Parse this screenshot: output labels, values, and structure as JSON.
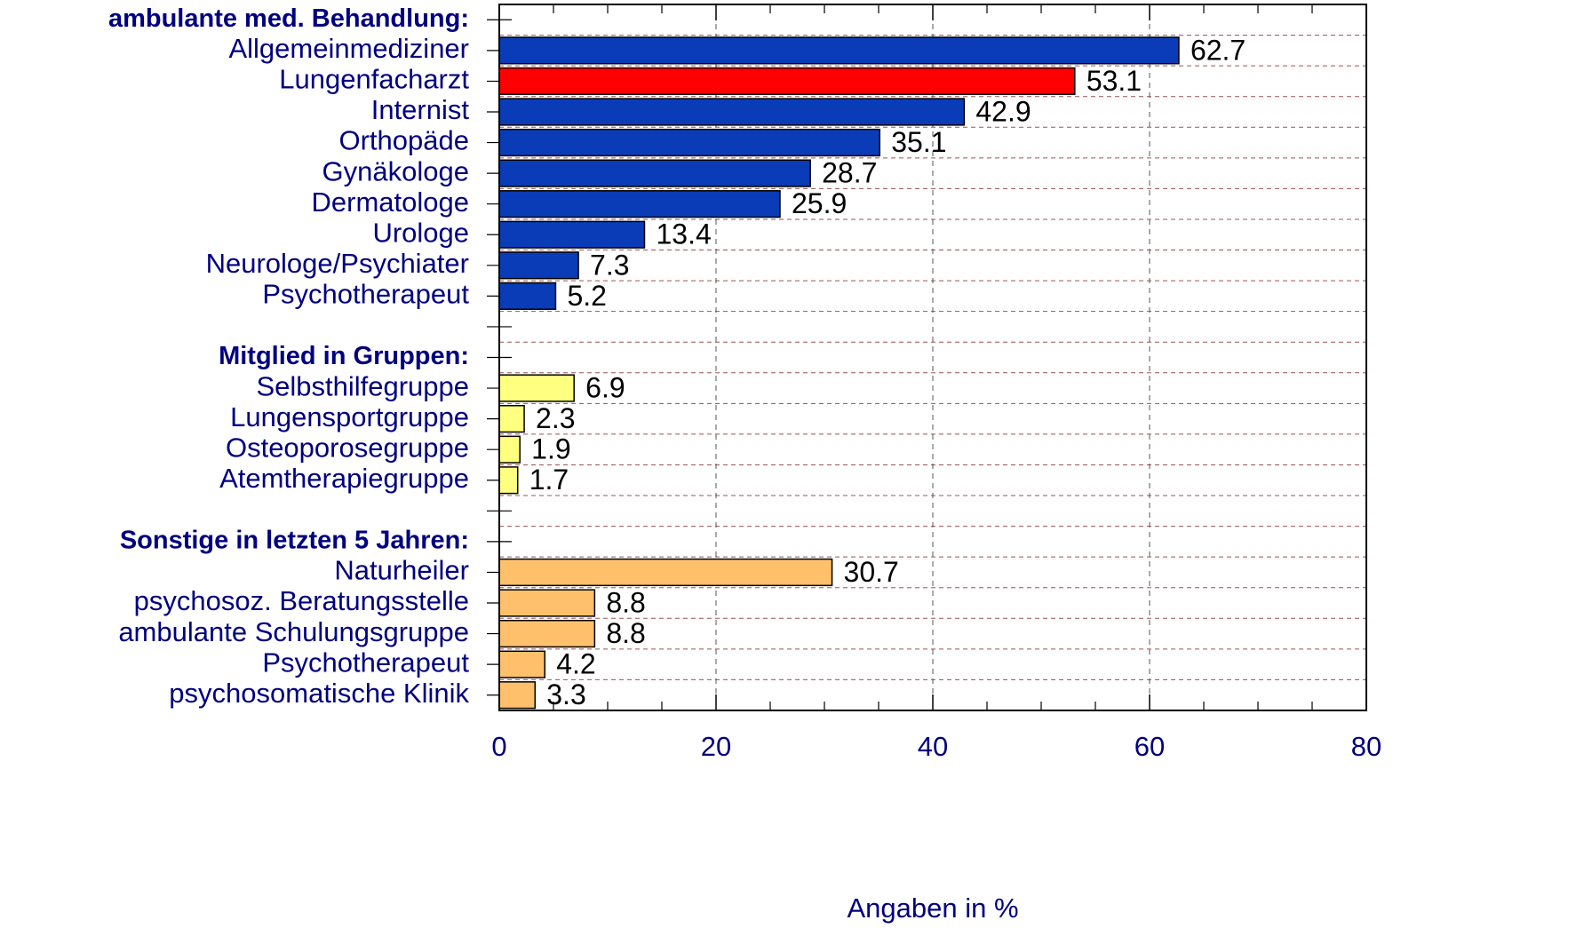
{
  "chart_data": {
    "type": "bar",
    "orientation": "horizontal",
    "categories": [
      "ambulante med. Behandlung:",
      "Allgemeinmediziner",
      "Lungenfacharzt",
      "Internist",
      "Orthopäde",
      "Gynäkologe",
      "Dermatologe",
      "Urologe",
      "Neurologe/Psychiater",
      "Psychotherapeut",
      null,
      "Mitglied in Gruppen:",
      "Selbsthilfegruppe",
      "Lungensportgruppe",
      "Osteoporosegruppe",
      "Atemtherapiegruppe",
      null,
      "Sonstige in letzten 5 Jahren:",
      "Naturheiler",
      "psychosoz. Beratungsstelle",
      "ambulante Schulungsgruppe",
      "Psychotherapeut",
      "psychosomatische Klinik"
    ],
    "values": [
      null,
      62.7,
      53.1,
      42.9,
      35.1,
      28.7,
      25.9,
      13.4,
      7.3,
      5.2,
      null,
      null,
      6.9,
      2.3,
      1.9,
      1.7,
      null,
      null,
      30.7,
      8.8,
      8.8,
      4.2,
      3.3
    ],
    "colors": [
      null,
      "#0a3cb8",
      "#ff0000",
      "#0a3cb8",
      "#0a3cb8",
      "#0a3cb8",
      "#0a3cb8",
      "#0a3cb8",
      "#0a3cb8",
      "#0a3cb8",
      null,
      null,
      "#ffff80",
      "#ffff80",
      "#ffff80",
      "#ffff80",
      null,
      null,
      "#ffc06c",
      "#ffc06c",
      "#ffc06c",
      "#ffc06c",
      "#ffc06c"
    ],
    "x_label": "Angaben in %",
    "xlim": [
      0,
      80
    ],
    "xticks": [
      0,
      20,
      40,
      60,
      80
    ],
    "grid": true
  }
}
